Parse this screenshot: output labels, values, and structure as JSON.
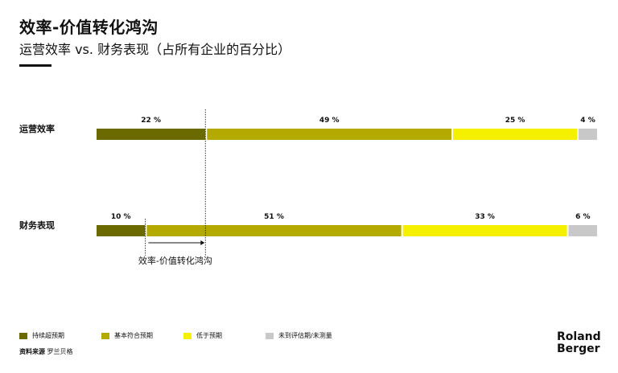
{
  "title": "效率-价值转化鸿沟",
  "subtitle": "运营效率 vs. 财务表现（占所有企业的百分比）",
  "chart_data": {
    "type": "bar",
    "orientation": "horizontal-stacked",
    "categories": [
      "运营效率",
      "财务表现"
    ],
    "series": [
      {
        "name": "持续超预期",
        "values": [
          22,
          10
        ],
        "color": "#6b6a00"
      },
      {
        "name": "基本符合预期",
        "values": [
          49,
          51
        ],
        "color": "#b3a900"
      },
      {
        "name": "低于预期",
        "values": [
          25,
          33
        ],
        "color": "#f5f000"
      },
      {
        "name": "未到评估期/未测量",
        "values": [
          4,
          6
        ],
        "color": "#c8c8c8"
      }
    ],
    "label_suffix": "%",
    "annotation": "效率-价值转化鸿沟"
  },
  "source": {
    "label": "资料来源",
    "value": "罗兰贝格"
  },
  "logo": {
    "line1": "Roland",
    "line2": "Berger"
  }
}
